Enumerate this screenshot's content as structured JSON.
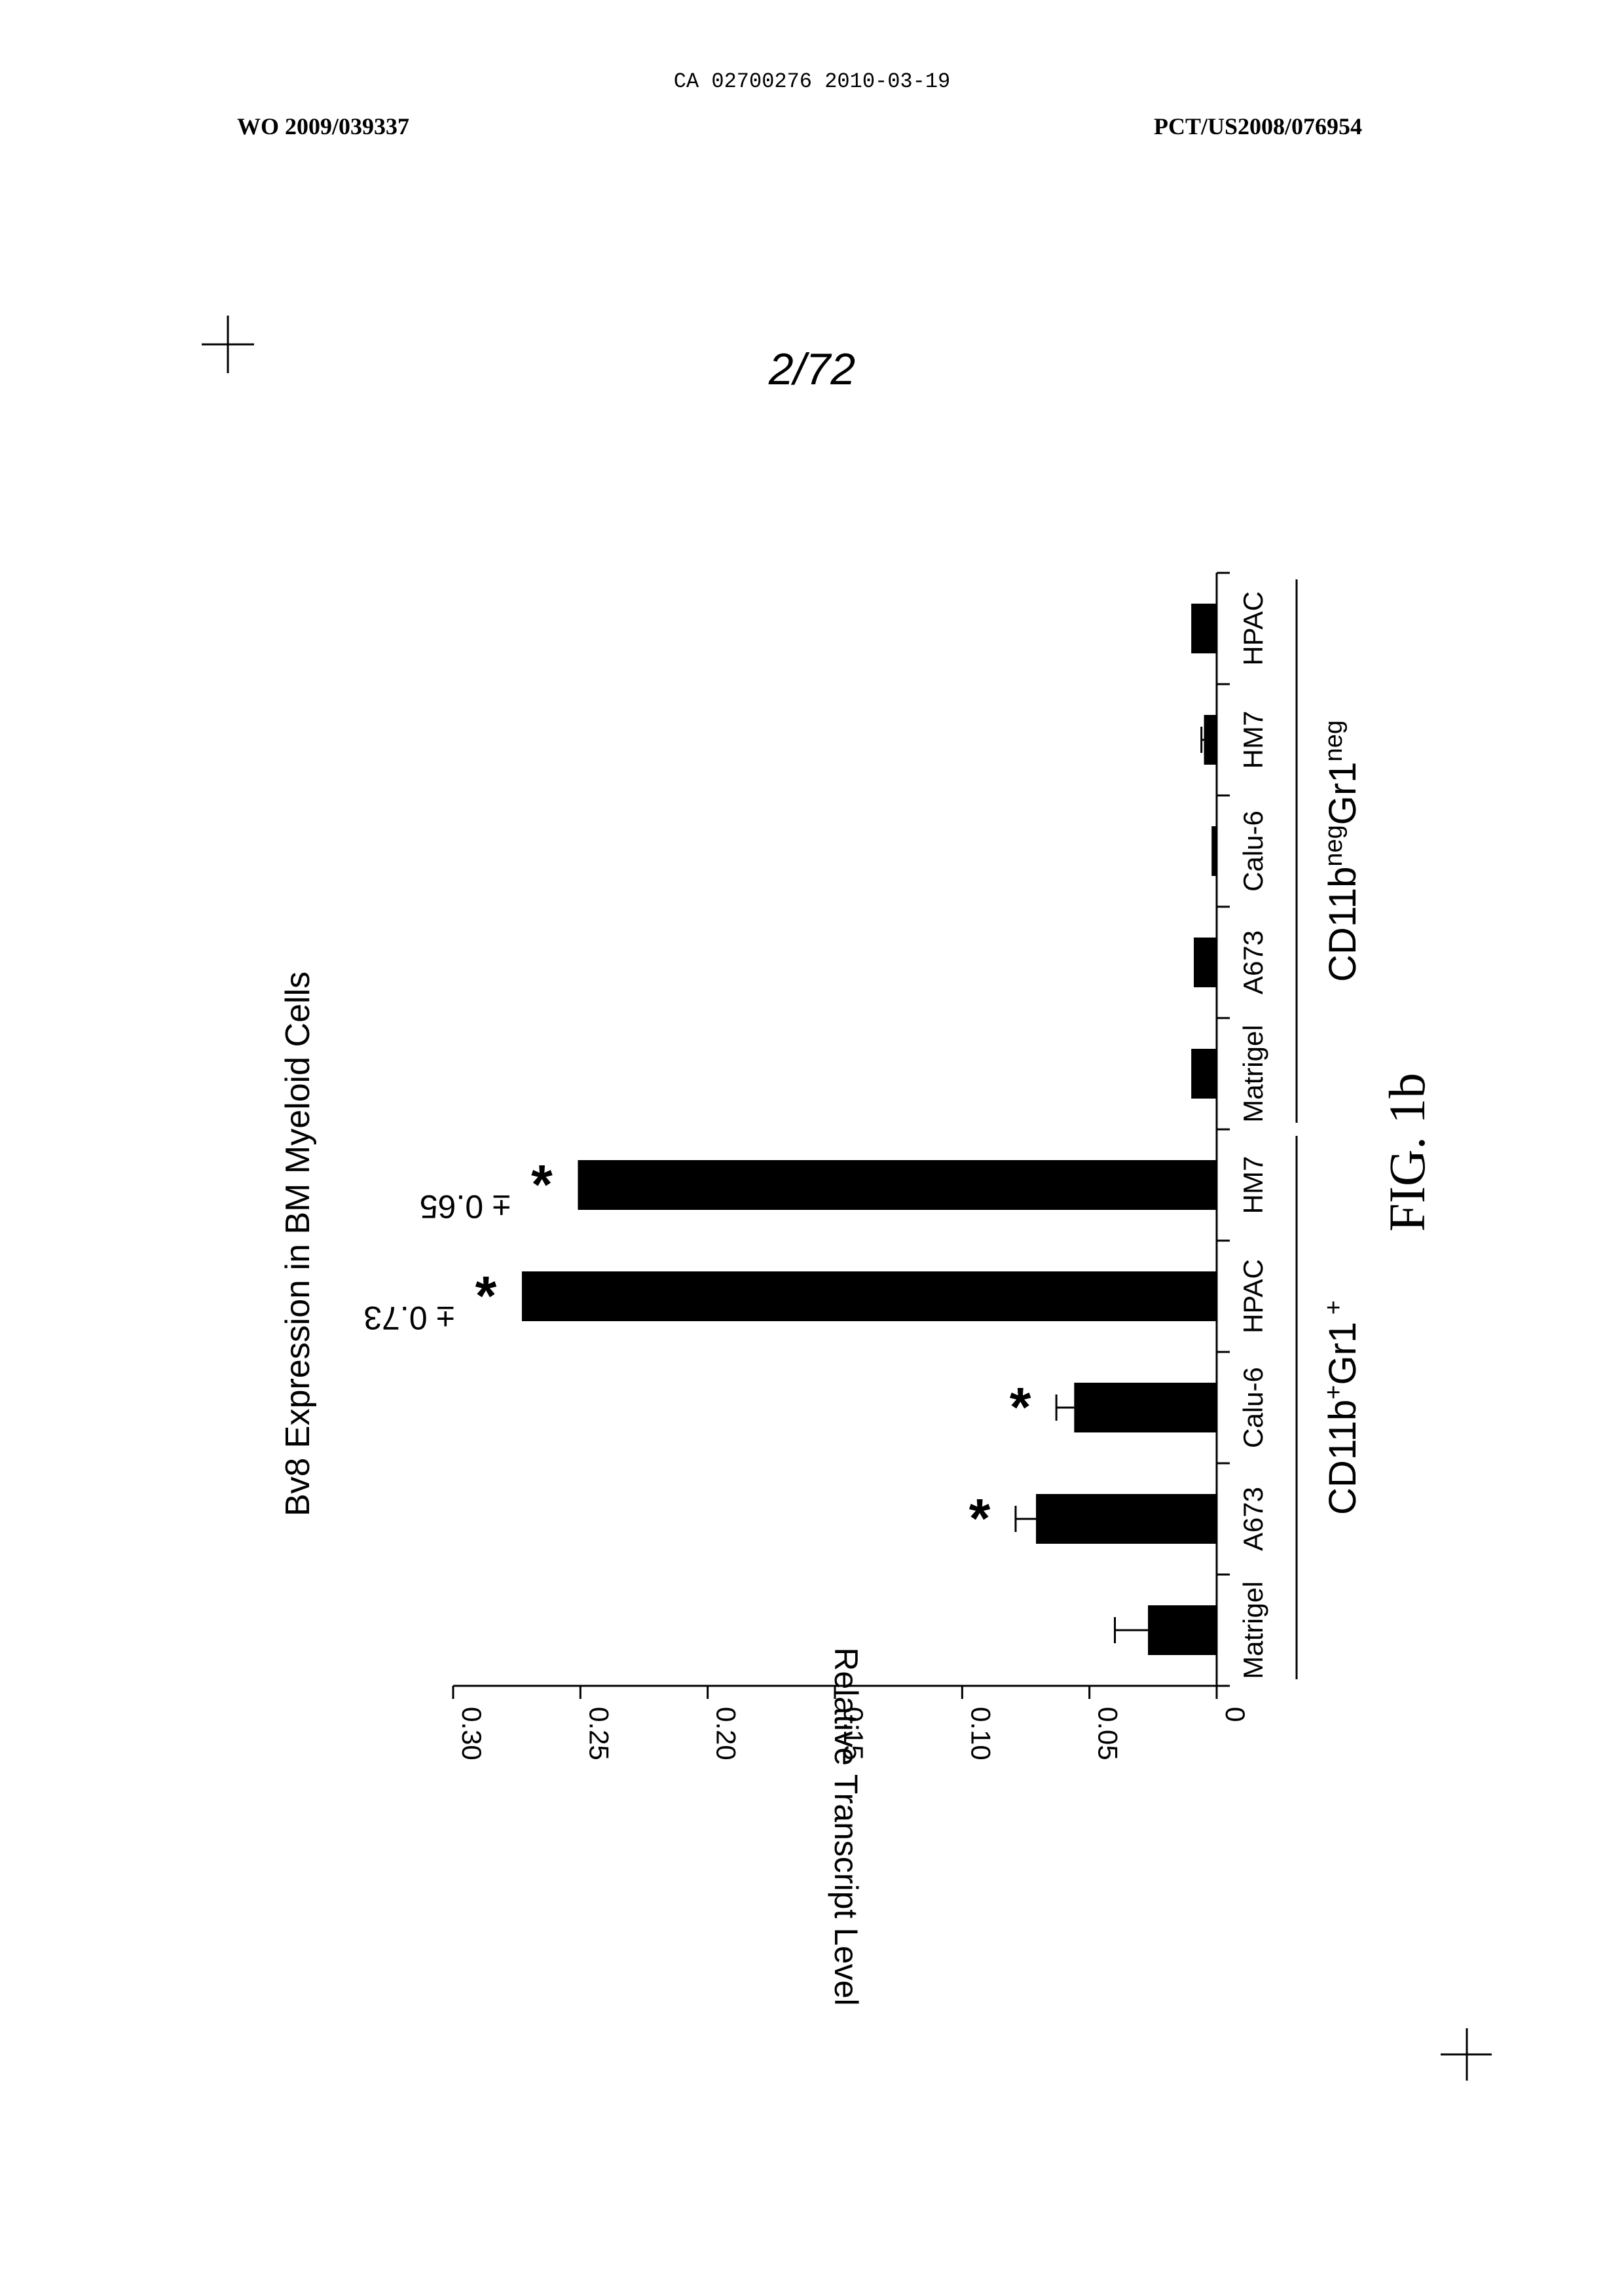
{
  "header": {
    "ca_number": "CA 02700276 2010-03-19",
    "wo_number": "WO 2009/039337",
    "pct_number": "PCT/US2008/076954",
    "page_number": "2/72"
  },
  "chart_data": {
    "type": "bar",
    "orientation": "rotated 90° clockwise",
    "title": "Bv8 Expression in BM Myeloid Cells",
    "ylabel": "Relative Transcript Level",
    "ylim": [
      0,
      0.3
    ],
    "yticks": [
      "0",
      "0.05",
      "0.10",
      "0.15",
      "0.20",
      "0.25",
      "0.30"
    ],
    "categories": [
      "Matrigel",
      "A673",
      "Calu-6",
      "HPAC",
      "HM7",
      "Matrigel",
      "A673",
      "Calu-6",
      "HM7",
      "HPAC"
    ],
    "values": [
      0.027,
      0.071,
      0.056,
      0.273,
      0.251,
      0.01,
      0.009,
      0.002,
      0.005,
      0.01
    ],
    "errors": [
      0.013,
      0.008,
      0.007,
      0,
      0,
      0,
      0,
      0,
      0.001,
      0
    ],
    "significant": [
      false,
      true,
      true,
      true,
      true,
      false,
      false,
      false,
      false,
      false
    ],
    "value_labels": [
      "",
      "",
      "",
      "± 0.73",
      "± 0.65",
      "",
      "",
      "",
      "",
      ""
    ],
    "asterisk": "*",
    "groups": [
      {
        "label_main": "CD11b",
        "label_sup1": "+",
        "label_mid": "Gr1",
        "label_sup2": " +"
      },
      {
        "label_main": "CD11b",
        "label_sup1": "neg",
        "label_mid": "Gr1",
        "label_sup2": "neg"
      }
    ],
    "figure_label": "FIG. 1b",
    "grid": false
  }
}
